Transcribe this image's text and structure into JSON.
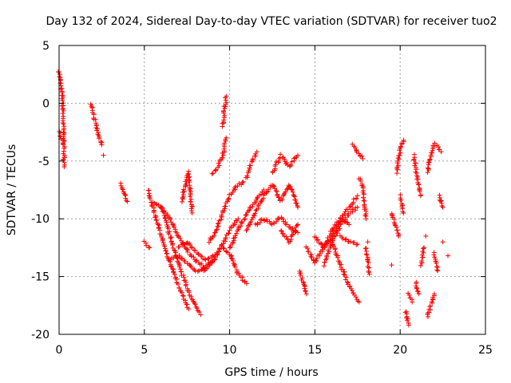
{
  "chart_data": {
    "type": "scatter",
    "title": "Day 132 of 2024, Sidereal Day-to-day VTEC variation (SDTVAR) for receiver tuo2",
    "xlabel": "GPS time / hours",
    "ylabel": "SDTVAR / TECUs",
    "xlim": [
      0,
      25
    ],
    "ylim": [
      -20,
      5
    ],
    "xticks": [
      0,
      5,
      10,
      15,
      20,
      25
    ],
    "yticks": [
      5,
      0,
      -5,
      -10,
      -15,
      -20
    ],
    "grid": true,
    "marker": "+",
    "series_color": "#ff0000",
    "segments": [
      {
        "x": [
          0.0,
          0.1,
          0.2,
          0.25,
          0.3
        ],
        "y": [
          2.8,
          1.5,
          0.5,
          -2.0,
          -5.5
        ]
      },
      {
        "x": [
          0.0,
          0.15,
          0.3
        ],
        "y": [
          -2.5,
          -3.0,
          -3.2
        ]
      },
      {
        "x": [
          1.9,
          2.1,
          2.3,
          2.5
        ],
        "y": [
          0.0,
          -1.5,
          -2.8,
          -3.6
        ]
      },
      {
        "x": [
          2.6
        ],
        "y": [
          -4.5
        ]
      },
      {
        "x": [
          3.6,
          3.8,
          4.0
        ],
        "y": [
          -7.0,
          -7.8,
          -8.5
        ]
      },
      {
        "x": [
          5.0,
          5.3
        ],
        "y": [
          -12.0,
          -12.5
        ]
      },
      {
        "x": [
          5.2,
          5.6,
          6.0,
          6.4,
          6.8,
          7.1,
          7.4,
          7.6
        ],
        "y": [
          -7.5,
          -9.5,
          -11.5,
          -13.5,
          -15.0,
          -16.2,
          -17.2,
          -17.8
        ]
      },
      {
        "x": [
          6.0,
          6.5,
          7.0,
          7.5,
          8.0,
          8.3
        ],
        "y": [
          -9.0,
          -11.5,
          -13.8,
          -16.0,
          -17.6,
          -18.3
        ]
      },
      {
        "x": [
          5.5,
          6.0,
          6.5,
          7.0,
          7.5,
          8.0,
          8.5
        ],
        "y": [
          -8.5,
          -9.0,
          -10.0,
          -11.5,
          -12.8,
          -13.6,
          -14.2
        ]
      },
      {
        "x": [
          6.5,
          7.0,
          7.5,
          8.0,
          8.5,
          9.0,
          9.5,
          10.0,
          10.5
        ],
        "y": [
          -13.5,
          -13.2,
          -13.8,
          -14.5,
          -14.3,
          -13.6,
          -12.4,
          -11.0,
          -10.0
        ]
      },
      {
        "x": [
          7.0,
          7.5,
          8.0,
          8.5,
          9.0
        ],
        "y": [
          -12.5,
          -12.0,
          -12.8,
          -13.5,
          -13.2
        ]
      },
      {
        "x": [
          7.2,
          7.4,
          7.6,
          7.8
        ],
        "y": [
          -8.5,
          -7.0,
          -6.0,
          -9.5
        ]
      },
      {
        "x": [
          9.0,
          9.3,
          9.6,
          9.8
        ],
        "y": [
          -6.2,
          -5.5,
          -4.5,
          -3.0
        ]
      },
      {
        "x": [
          9.6,
          9.7,
          9.8
        ],
        "y": [
          -2.0,
          -0.5,
          0.6
        ]
      },
      {
        "x": [
          8.5,
          9.0,
          9.5,
          10.0,
          10.5,
          11.0
        ],
        "y": [
          -14.5,
          -13.8,
          -12.5,
          -13.0,
          -14.8,
          -15.6
        ]
      },
      {
        "x": [
          8.8,
          9.2,
          9.6,
          10.0,
          10.4,
          10.8
        ],
        "y": [
          -12.0,
          -11.0,
          -9.5,
          -8.0,
          -7.2,
          -6.8
        ]
      },
      {
        "x": [
          10.0,
          10.5,
          11.0,
          11.5,
          12.0
        ],
        "y": [
          -12.5,
          -11.0,
          -9.5,
          -8.5,
          -7.5
        ]
      },
      {
        "x": [
          11.0,
          11.5,
          12.0,
          12.5,
          13.0,
          13.5,
          14.0
        ],
        "y": [
          -11.0,
          -9.5,
          -8.0,
          -7.0,
          -8.5,
          -7.0,
          -9.0
        ]
      },
      {
        "x": [
          11.5,
          12.0,
          12.5,
          13.0,
          13.5,
          14.0
        ],
        "y": [
          -10.5,
          -10.0,
          -10.5,
          -9.8,
          -10.8,
          -11.2
        ]
      },
      {
        "x": [
          11.0,
          11.3,
          11.6
        ],
        "y": [
          -6.5,
          -5.0,
          -4.2
        ]
      },
      {
        "x": [
          12.5,
          13.0,
          13.5,
          14.0
        ],
        "y": [
          -6.0,
          -4.5,
          -5.5,
          -4.5
        ]
      },
      {
        "x": [
          13.0,
          13.5,
          14.0
        ],
        "y": [
          -11.0,
          -12.0,
          -10.5
        ]
      },
      {
        "x": [
          14.1,
          14.3,
          14.5
        ],
        "y": [
          -14.5,
          -15.5,
          -16.5
        ]
      },
      {
        "x": [
          14.5,
          15.0,
          15.5,
          16.0,
          16.5,
          17.0
        ],
        "y": [
          -12.5,
          -13.8,
          -12.5,
          -11.0,
          -10.0,
          -10.5
        ]
      },
      {
        "x": [
          15.0,
          15.5,
          16.0,
          16.5,
          17.0,
          17.5
        ],
        "y": [
          -11.5,
          -12.5,
          -11.5,
          -10.0,
          -9.0,
          -8.0
        ]
      },
      {
        "x": [
          15.5,
          16.0,
          16.5,
          17.0,
          17.5
        ],
        "y": [
          -14.0,
          -12.0,
          -10.5,
          -9.5,
          -9.0
        ]
      },
      {
        "x": [
          16.0,
          16.5,
          17.0,
          17.3,
          17.6
        ],
        "y": [
          -12.0,
          -14.0,
          -15.8,
          -16.5,
          -17.2
        ]
      },
      {
        "x": [
          16.5,
          17.0,
          17.5
        ],
        "y": [
          -11.5,
          -12.0,
          -12.2
        ]
      },
      {
        "x": [
          17.2,
          17.5,
          17.8
        ],
        "y": [
          -3.6,
          -4.2,
          -4.8
        ]
      },
      {
        "x": [
          17.6,
          17.8,
          18.0
        ],
        "y": [
          -6.5,
          -7.2,
          -10.0
        ]
      },
      {
        "x": [
          18.0,
          18.2
        ],
        "y": [
          -12.5,
          -14.8
        ]
      },
      {
        "x": [
          18.1
        ],
        "y": [
          -12.0
        ]
      },
      {
        "x": [
          19.5
        ],
        "y": [
          -14.0
        ]
      },
      {
        "x": [
          19.5,
          19.7,
          19.9
        ],
        "y": [
          -9.5,
          -10.5,
          -11.5
        ]
      },
      {
        "x": [
          19.8,
          20.0,
          20.2
        ],
        "y": [
          -6.0,
          -4.0,
          -3.2
        ]
      },
      {
        "x": [
          20.0,
          20.2
        ],
        "y": [
          -8.0,
          -9.5
        ]
      },
      {
        "x": [
          20.3,
          20.5
        ],
        "y": [
          -18.0,
          -19.2
        ]
      },
      {
        "x": [
          20.5,
          20.7
        ],
        "y": [
          -16.5,
          -17.2
        ]
      },
      {
        "x": [
          20.8,
          21.0,
          21.2
        ],
        "y": [
          -4.5,
          -6.5,
          -8.0
        ]
      },
      {
        "x": [
          20.9,
          21.1
        ],
        "y": [
          -15.5,
          -16.5
        ]
      },
      {
        "x": [
          21.2,
          21.4
        ],
        "y": [
          -14.0,
          -12.5
        ]
      },
      {
        "x": [
          21.6,
          21.8,
          22.0
        ],
        "y": [
          -18.5,
          -17.5,
          -16.5
        ]
      },
      {
        "x": [
          21.6,
          21.8,
          22.0,
          22.2,
          22.4
        ],
        "y": [
          -6.0,
          -4.5,
          -3.5,
          -3.8,
          -4.2
        ]
      },
      {
        "x": [
          21.5
        ],
        "y": [
          -11.5
        ]
      },
      {
        "x": [
          22.0,
          22.2
        ],
        "y": [
          -13.0,
          -14.5
        ]
      },
      {
        "x": [
          22.3,
          22.5
        ],
        "y": [
          -8.0,
          -9.0
        ]
      },
      {
        "x": [
          22.5
        ],
        "y": [
          -12.0
        ]
      },
      {
        "x": [
          22.8
        ],
        "y": [
          -13.2
        ]
      }
    ]
  }
}
